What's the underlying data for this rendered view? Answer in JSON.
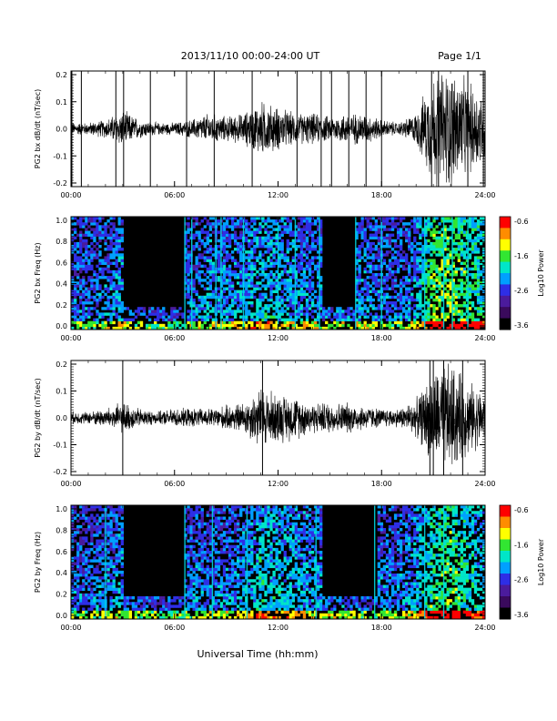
{
  "header": {
    "title": "2013/11/10  00:00-24:00 UT",
    "page": "Page 1/1"
  },
  "chart_data": [
    {
      "type": "line",
      "ylabel": "PG2 bx dB/dt (nT/sec)",
      "ylim": [
        -0.2,
        0.2
      ],
      "yticks": [
        "0.2",
        "0.1",
        "0.0",
        "-0.1",
        "-0.2"
      ],
      "xticks": [
        "00:00",
        "06:00",
        "12:00",
        "18:00",
        "24:00"
      ],
      "xlim": [
        "00:00",
        "24:00"
      ],
      "series": [
        {
          "x_hours": [
            0,
            1,
            2,
            3,
            4,
            5,
            6,
            7,
            8,
            9,
            10,
            11,
            12,
            13,
            14,
            15,
            16,
            17,
            18,
            19,
            20,
            21,
            22,
            23,
            24
          ],
          "envelope": [
            0.02,
            0.02,
            0.03,
            0.06,
            0.03,
            0.02,
            0.02,
            0.03,
            0.05,
            0.04,
            0.05,
            0.09,
            0.07,
            0.05,
            0.05,
            0.04,
            0.05,
            0.05,
            0.03,
            0.02,
            0.05,
            0.18,
            0.2,
            0.15,
            0.12
          ]
        }
      ],
      "spikes_hours": [
        0.05,
        0.6,
        2.6,
        3.05,
        4.6,
        6.7,
        8.3,
        10.5,
        13.1,
        14.5,
        15.1,
        16.1,
        17.1,
        18.0,
        20.9,
        21.3,
        23.0,
        23.9
      ]
    },
    {
      "type": "heatmap",
      "ylabel": "PG2 bx Freq (Hz)",
      "ylim": [
        0.0,
        1.0
      ],
      "yticks": [
        "1.0",
        "0.8",
        "0.6",
        "0.4",
        "0.2",
        "0.0"
      ],
      "xticks": [
        "00:00",
        "06:00",
        "12:00",
        "18:00",
        "24:00"
      ],
      "colorbar": {
        "label": "Log10 Power",
        "ticks": [
          "-0.6",
          "-1.6",
          "-2.6",
          "-3.6"
        ],
        "range": [
          -3.6,
          -0.6
        ]
      },
      "quiet_windows_hours": [
        [
          3.0,
          6.6
        ],
        [
          14.5,
          16.5
        ]
      ],
      "lines_hours": [
        6.6,
        7.0,
        8.4,
        8.7,
        10.0,
        12.0,
        13.0,
        14.4,
        16.5,
        18.0,
        20.5,
        21.6,
        22.1,
        23.0
      ]
    },
    {
      "type": "line",
      "ylabel": "PG2 by dB/dt (nT/sec)",
      "ylim": [
        -0.2,
        0.2
      ],
      "yticks": [
        "0.2",
        "0.1",
        "0.0",
        "-0.1",
        "-0.2"
      ],
      "xticks": [
        "00:00",
        "06:00",
        "12:00",
        "18:00",
        "24:00"
      ],
      "series": [
        {
          "x_hours": [
            0,
            1,
            2,
            3,
            4,
            5,
            6,
            7,
            8,
            9,
            10,
            11,
            12,
            13,
            14,
            15,
            16,
            17,
            18,
            19,
            20,
            21,
            22,
            23,
            24
          ],
          "envelope": [
            0.02,
            0.02,
            0.03,
            0.05,
            0.03,
            0.02,
            0.03,
            0.03,
            0.03,
            0.04,
            0.05,
            0.1,
            0.08,
            0.07,
            0.05,
            0.05,
            0.05,
            0.04,
            0.03,
            0.03,
            0.06,
            0.15,
            0.18,
            0.12,
            0.08
          ]
        }
      ],
      "spikes_hours": [
        3.0,
        11.1,
        20.8,
        21.0,
        21.6,
        22.7
      ]
    },
    {
      "type": "heatmap",
      "ylabel": "PG2 by Freq (Hz)",
      "ylim": [
        0.0,
        1.0
      ],
      "yticks": [
        "1.0",
        "0.8",
        "0.6",
        "0.4",
        "0.2",
        "0.0"
      ],
      "xticks": [
        "00:00",
        "06:00",
        "12:00",
        "18:00",
        "24:00"
      ],
      "colorbar": {
        "label": "Log10 Power",
        "ticks": [
          "-0.6",
          "-1.6",
          "-2.6",
          "-3.6"
        ],
        "range": [
          -3.6,
          -0.6
        ]
      },
      "quiet_windows_hours": [
        [
          3.0,
          6.6
        ],
        [
          14.5,
          17.8
        ]
      ],
      "lines_hours": [
        2.0,
        6.6,
        8.2,
        10.2,
        14.2,
        17.6,
        20.5,
        21.6
      ]
    }
  ],
  "xlabel": "Universal Time (hh:mm)",
  "colors": {
    "trace": "#000000",
    "colorscale": [
      "#000000",
      "#3a0a5c",
      "#4b1b9c",
      "#2e2ee6",
      "#00a0ff",
      "#00e6c8",
      "#32e632",
      "#ffff00",
      "#ff8c00",
      "#ff0000"
    ]
  }
}
